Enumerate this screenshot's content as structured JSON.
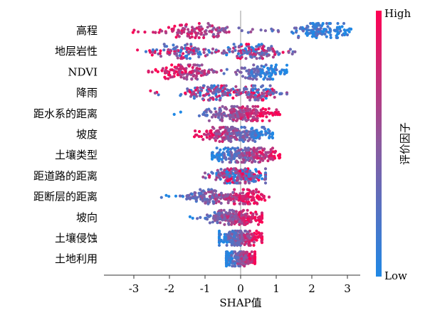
{
  "chart_data": {
    "type": "scatter",
    "subtype": "shap-beeswarm",
    "xlabel": "SHAP值",
    "xticks": [
      -3,
      -2,
      -1,
      0,
      1,
      2,
      3
    ],
    "xlim": [
      -3.8,
      3.4
    ],
    "colorbar": {
      "label": "评价因子",
      "high": "High",
      "low": "Low"
    },
    "colors": {
      "low": "#1f88e5",
      "mid": "#8b5a9e",
      "high": "#ff0052",
      "zero_line": "#999999"
    },
    "features": [
      {
        "name": "高程",
        "min": -3.1,
        "max": 3.1,
        "spread": 0.9,
        "corr": "neg",
        "mode": [
          -1.2,
          2.3
        ]
      },
      {
        "name": "地层岩性",
        "min": -3.3,
        "max": 1.6,
        "spread": 0.8,
        "corr": "mixed",
        "mode": [
          -1.7,
          0.3
        ]
      },
      {
        "name": "NDVI",
        "min": -2.6,
        "max": 1.3,
        "spread": 0.75,
        "corr": "neg",
        "mode": [
          -1.5,
          0.6
        ]
      },
      {
        "name": "降雨",
        "min": -2.6,
        "max": 1.3,
        "spread": 0.7,
        "corr": "mixed",
        "mode": [
          -0.8,
          0.4
        ]
      },
      {
        "name": "距水系的距离",
        "min": -2.1,
        "max": 1.1,
        "spread": 0.7,
        "corr": "pos",
        "mode": [
          -0.3,
          0.3
        ]
      },
      {
        "name": "坡度",
        "min": -1.3,
        "max": 0.9,
        "spread": 0.7,
        "corr": "neg",
        "mode": [
          -0.4,
          0.2
        ]
      },
      {
        "name": "土壤类型",
        "min": -0.8,
        "max": 1.1,
        "spread": 0.75,
        "corr": "pos",
        "mode": [
          -0.2,
          0.4
        ]
      },
      {
        "name": "距道路的距离",
        "min": -1.1,
        "max": 0.7,
        "spread": 0.7,
        "corr": "mixed",
        "mode": [
          -0.2,
          0.2
        ]
      },
      {
        "name": "距断层的距离",
        "min": -2.3,
        "max": 0.8,
        "spread": 0.55,
        "corr": "pos",
        "mode": [
          -0.9,
          0.1
        ]
      },
      {
        "name": "坡向",
        "min": -1.5,
        "max": 0.6,
        "spread": 0.55,
        "corr": "pos",
        "mode": [
          -0.4,
          0.1
        ]
      },
      {
        "name": "土壤侵蚀",
        "min": -0.6,
        "max": 0.6,
        "spread": 0.6,
        "corr": "pos",
        "mode": [
          -0.2,
          0.1
        ]
      },
      {
        "name": "土地利用",
        "min": -0.4,
        "max": 0.4,
        "spread": 0.5,
        "corr": "pos",
        "mode": [
          -0.1,
          0.1
        ]
      }
    ]
  }
}
